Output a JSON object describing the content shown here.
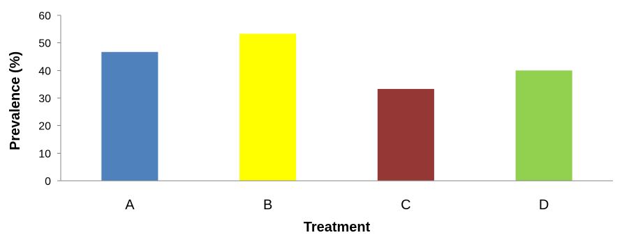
{
  "chart_data": {
    "type": "bar",
    "title": "",
    "xlabel": "Treatment",
    "ylabel": "Prevalence (%)",
    "categories": [
      "A",
      "B",
      "C",
      "D"
    ],
    "values": [
      46.7,
      53.3,
      33.3,
      40.0
    ],
    "colors": [
      "#4f81bd",
      "#ffff00",
      "#953735",
      "#92d050"
    ],
    "ylim": [
      0,
      60
    ],
    "yticks": [
      0,
      10,
      20,
      30,
      40,
      50,
      60
    ],
    "ytick_labels": [
      "0",
      "10",
      "20",
      "30",
      "40",
      "50",
      "60"
    ],
    "grid": false,
    "legend": "none"
  }
}
